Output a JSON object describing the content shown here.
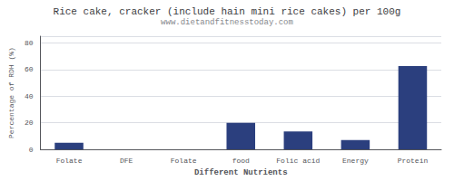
{
  "chart_data": {
    "type": "bar",
    "title": "Rice cake, cracker (include hain mini rice cakes) per 100g",
    "subtitle": "www.dietandfitnesstoday.com",
    "xlabel": "Different Nutrients",
    "ylabel": "Percentage of RDH (%)",
    "categories": [
      "Folate",
      "DFE",
      "Folate",
      "food",
      "Folic acid",
      "Energy",
      "Protein"
    ],
    "values": [
      5,
      0,
      0,
      20,
      13.5,
      7,
      62.5
    ],
    "color": "#2b3f7e",
    "ylim": [
      0,
      85
    ],
    "yticks": [
      0,
      20,
      40,
      60,
      80
    ],
    "grid": true
  }
}
